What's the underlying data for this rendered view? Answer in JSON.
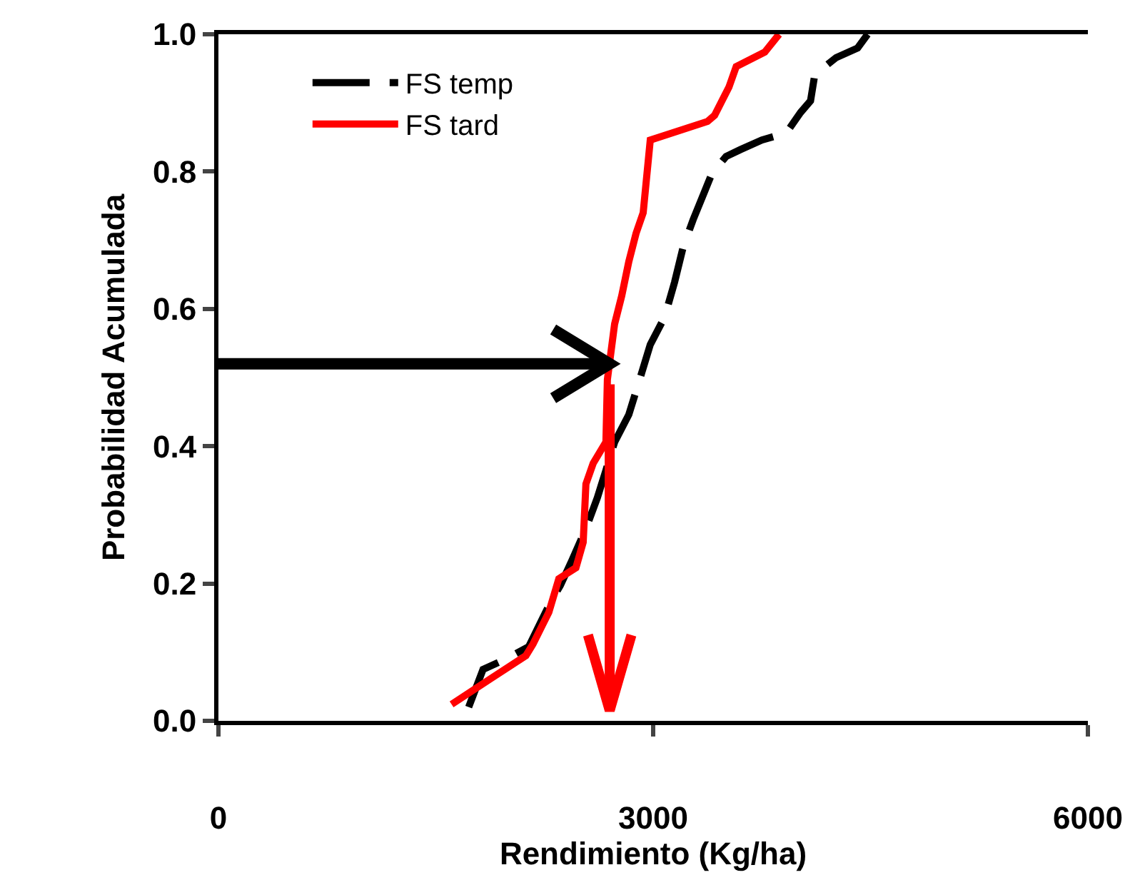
{
  "chart_data": {
    "type": "line",
    "xlabel": "Rendimiento (Kg/ha)",
    "ylabel": "Probabilidad Acumulada",
    "xlim": [
      0,
      6000
    ],
    "xticks": [
      0,
      3000,
      6000
    ],
    "ylim": [
      0,
      1
    ],
    "yticks": [
      {
        "value": 0,
        "label": "0.0"
      },
      {
        "value": 0.2,
        "label": "0.2"
      },
      {
        "value": 0.4,
        "label": "0.4"
      },
      {
        "value": 0.6,
        "label": "0.6"
      },
      {
        "value": 0.8,
        "label": "0.8"
      },
      {
        "value": 1,
        "label": "1.0"
      }
    ],
    "legend": "top left",
    "series": [
      {
        "name": "FS temp",
        "color": "#000000",
        "line_style": "dashed",
        "x": [
          1727,
          1826,
          1993,
          2141,
          2220,
          2290,
          2359,
          2438,
          2536,
          2615,
          2674,
          2734,
          2832,
          2901,
          2980,
          3079,
          3148,
          3207,
          3276,
          3355,
          3405,
          3503,
          3602,
          3750,
          3918,
          4017,
          4086,
          4115,
          4263,
          4411,
          4480
        ],
        "values": [
          0.02,
          0.075,
          0.091,
          0.108,
          0.142,
          0.172,
          0.197,
          0.233,
          0.28,
          0.325,
          0.365,
          0.406,
          0.446,
          0.493,
          0.548,
          0.588,
          0.639,
          0.69,
          0.73,
          0.771,
          0.797,
          0.822,
          0.832,
          0.846,
          0.856,
          0.886,
          0.903,
          0.941,
          0.966,
          0.98,
          1.0
        ]
      },
      {
        "name": "FS tard",
        "color": "#ff0000",
        "line_style": "solid",
        "x": [
          1609,
          1875,
          2122,
          2171,
          2280,
          2349,
          2467,
          2517,
          2536,
          2586,
          2674,
          2684,
          2734,
          2783,
          2832,
          2882,
          2931,
          2980,
          3375,
          3424,
          3523,
          3573,
          3770,
          3869
        ],
        "values": [
          0.024,
          0.061,
          0.095,
          0.112,
          0.158,
          0.207,
          0.223,
          0.26,
          0.345,
          0.375,
          0.406,
          0.497,
          0.578,
          0.619,
          0.669,
          0.71,
          0.74,
          0.846,
          0.873,
          0.882,
          0.923,
          0.953,
          0.974,
          1.0
        ]
      }
    ],
    "ref_lines": [
      {
        "axis": "y",
        "value": 0.52,
        "color": "#000000"
      },
      {
        "axis": "x",
        "value": 2700,
        "color": "#ff0000"
      }
    ]
  }
}
